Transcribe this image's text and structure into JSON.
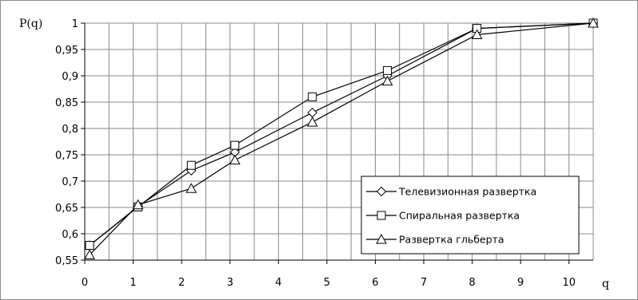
{
  "chart_data": {
    "type": "line",
    "ylabel": "P(q)",
    "xlabel": "q",
    "xlim": [
      0,
      10.5
    ],
    "ylim": [
      0.55,
      1.0
    ],
    "xticks": [
      "0",
      "1",
      "2",
      "3",
      "4",
      "5",
      "6",
      "7",
      "8",
      "9",
      "10"
    ],
    "yticks": [
      "0,55",
      "0,6",
      "0,65",
      "0,7",
      "0,75",
      "0,8",
      "0,85",
      "0,9",
      "0,95",
      "1"
    ],
    "grid": true,
    "legend_position": "bottom-right",
    "series": [
      {
        "name": "Телевизионная развертка",
        "marker": "diamond",
        "x": [
          0.1,
          1.1,
          2.2,
          3.1,
          4.7,
          6.25,
          8.1,
          10.5
        ],
        "y": [
          0.578,
          0.652,
          0.72,
          0.755,
          0.83,
          0.9,
          0.99,
          1.0
        ]
      },
      {
        "name": "Спиральная развертка",
        "marker": "square",
        "x": [
          0.1,
          1.1,
          2.2,
          3.1,
          4.7,
          6.25,
          8.1,
          10.5
        ],
        "y": [
          0.578,
          0.651,
          0.73,
          0.768,
          0.86,
          0.91,
          0.99,
          1.0
        ]
      },
      {
        "name": "Развертка гльберта",
        "marker": "triangle",
        "x": [
          0.1,
          1.1,
          2.2,
          3.1,
          4.7,
          6.25,
          8.1,
          10.5
        ],
        "y": [
          0.56,
          0.655,
          0.686,
          0.74,
          0.812,
          0.89,
          0.978,
          1.0
        ]
      }
    ]
  }
}
